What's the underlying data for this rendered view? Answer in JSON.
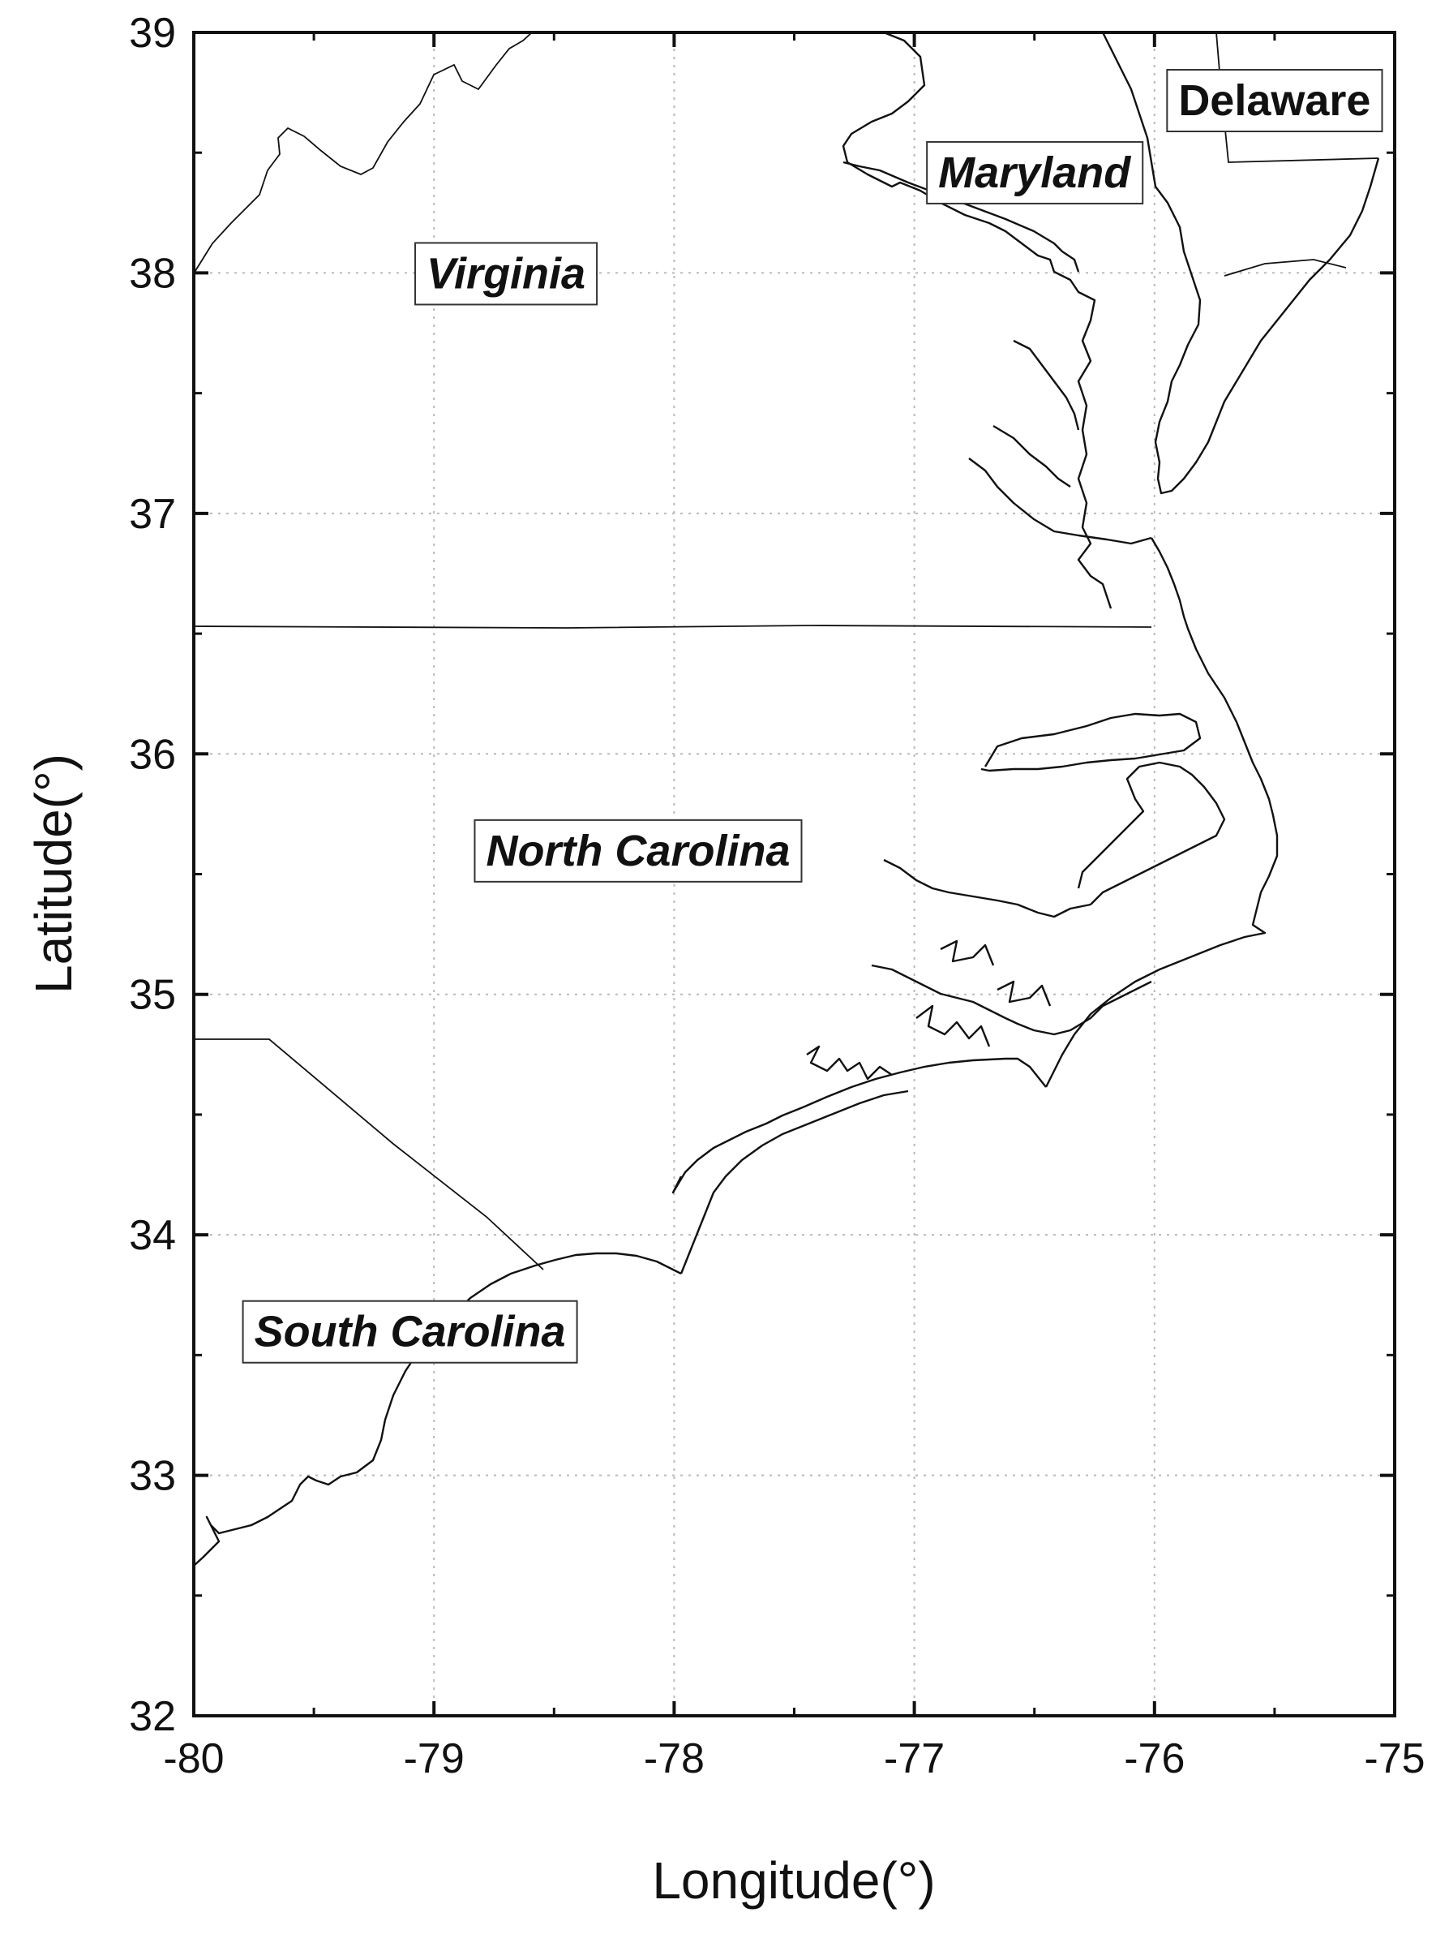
{
  "map": {
    "xlabel": "Longitude(°)",
    "ylabel": "Latitude(°)",
    "xlim": [
      -80,
      -75
    ],
    "ylim": [
      32,
      39
    ],
    "x_ticks": [
      "-80",
      "-79",
      "-78",
      "-77",
      "-76",
      "-75"
    ],
    "y_ticks": [
      "32",
      "33",
      "34",
      "35",
      "36",
      "37",
      "38",
      "39"
    ],
    "grid": true,
    "region_labels": [
      {
        "name": "Virginia",
        "lon": -78.7,
        "lat": 38.0,
        "italic": true
      },
      {
        "name": "Maryland",
        "lon": -76.5,
        "lat": 38.42,
        "italic": true
      },
      {
        "name": "Delaware",
        "lon": -75.5,
        "lat": 38.72,
        "italic": false
      },
      {
        "name": "North Carolina",
        "lon": -78.15,
        "lat": 35.6,
        "italic": true
      },
      {
        "name": "South Carolina",
        "lon": -79.1,
        "lat": 33.6,
        "italic": true
      }
    ],
    "line_color": "#111111"
  }
}
